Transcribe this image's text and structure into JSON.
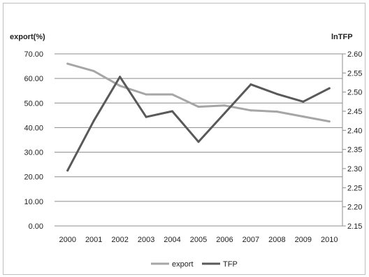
{
  "chart_data": {
    "type": "line",
    "categories": [
      "2000",
      "2001",
      "2002",
      "2003",
      "2004",
      "2005",
      "2006",
      "2007",
      "2008",
      "2009",
      "2010"
    ],
    "ylabel_left": "export(%)",
    "ylabel_right": "lnTFP",
    "yticks_left": [
      "0.00",
      "10.00",
      "20.00",
      "30.00",
      "40.00",
      "50.00",
      "60.00",
      "70.00"
    ],
    "yticks_right": [
      "2.15",
      "2.20",
      "2.25",
      "2.30",
      "2.35",
      "2.40",
      "2.45",
      "2.50",
      "2.55",
      "2.60"
    ],
    "ylim_left": [
      0,
      70
    ],
    "ylim_right": [
      2.15,
      2.6
    ],
    "grid": true,
    "legend_position": "bottom",
    "series": [
      {
        "name": "export",
        "axis": "left",
        "color": "#a6a6a6",
        "values": [
          66.0,
          63.0,
          57.0,
          53.5,
          53.5,
          48.5,
          49.0,
          47.0,
          46.5,
          44.5,
          42.5
        ]
      },
      {
        "name": "TFP",
        "axis": "right",
        "color": "#595959",
        "values": [
          2.295,
          2.425,
          2.54,
          2.435,
          2.45,
          2.37,
          2.445,
          2.52,
          2.495,
          2.475,
          2.51
        ]
      }
    ]
  }
}
